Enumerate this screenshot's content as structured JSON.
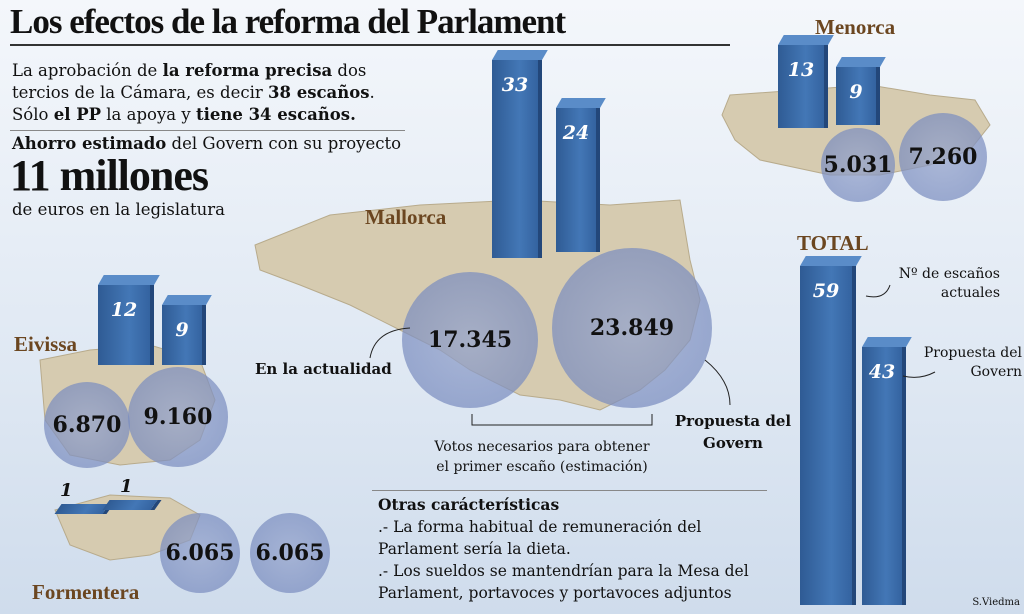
{
  "title": "Los efectos de la reforma del Parlament",
  "intro": {
    "parts": [
      [
        "La aprobación de ",
        false
      ],
      [
        "la reforma precisa",
        true
      ],
      [
        " dos tercios de la Cámara, es decir ",
        false
      ],
      [
        "38 escaños",
        true
      ],
      [
        ". Sólo ",
        false
      ],
      [
        "el PP",
        true
      ],
      [
        " la apoya y ",
        false
      ],
      [
        "tiene 34 escaños.",
        true
      ]
    ]
  },
  "savings": {
    "lead_bold": "Ahorro estimado",
    "lead_rest": " del Govern con su proyecto",
    "amount": "11 millones",
    "sub": "de euros en la legislatura"
  },
  "labels": {
    "actual": "En la actualidad",
    "propuesta": "Propuesta del Govern",
    "votos": "Votos necesarios para obtener el primer escaño (estimación)",
    "n_escanos": "Nº de escaños actuales",
    "propuesta_total": "Propuesta del Govern"
  },
  "otras": {
    "heading": "Otras carácterísticas",
    "items": [
      ".- La forma habitual de remuneración del Parlament sería la dieta.",
      ".- Los sueldos se mantendrían para la Mesa del Parlament, portavoces y portavoces adjuntos"
    ]
  },
  "credit": "S.Viedma",
  "colors": {
    "bar": "#3a6aa5",
    "island_label": "#6b4620",
    "map": "#d6cbb0",
    "circle": "#8c9dcb"
  },
  "chart_data": {
    "type": "bar",
    "series_desc": [
      "escaños actuales",
      "escaños propuesta del Govern"
    ],
    "groups": [
      {
        "name": "Mallorca",
        "seats_current": 33,
        "seats_proposed": 24,
        "votes_current": "17.345",
        "votes_proposed": "23.849"
      },
      {
        "name": "Menorca",
        "seats_current": 13,
        "seats_proposed": 9,
        "votes_current": "5.031",
        "votes_proposed": "7.260"
      },
      {
        "name": "Eivissa",
        "seats_current": 12,
        "seats_proposed": 9,
        "votes_current": "6.870",
        "votes_proposed": "9.160"
      },
      {
        "name": "Formentera",
        "seats_current": 1,
        "seats_proposed": 1,
        "votes_current": "6.065",
        "votes_proposed": "6.065"
      },
      {
        "name": "TOTAL",
        "seats_current": 59,
        "seats_proposed": 43
      }
    ]
  }
}
